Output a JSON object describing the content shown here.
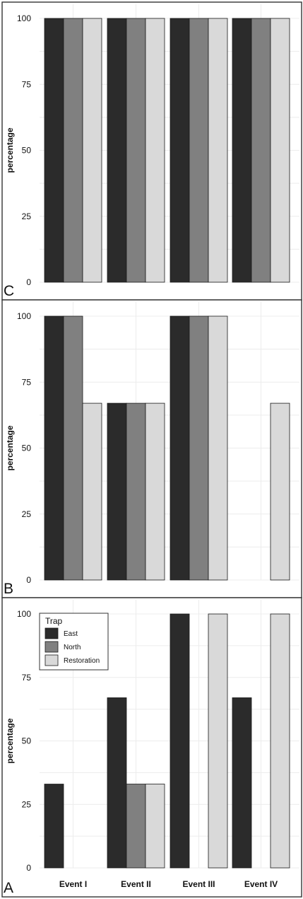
{
  "chart_data": [
    {
      "type": "bar",
      "panel": "C",
      "ylabel": "percentage",
      "ylim": [
        0,
        100
      ],
      "yticks": [
        "0",
        "25",
        "50",
        "75",
        "100"
      ],
      "categories": [
        "Event I",
        "Event II",
        "Event III",
        "Event IV"
      ],
      "show_category_labels": false,
      "series": [
        {
          "name": "East",
          "values": [
            100,
            100,
            100,
            100
          ]
        },
        {
          "name": "North",
          "values": [
            100,
            100,
            100,
            100
          ]
        },
        {
          "name": "Restoration",
          "values": [
            100,
            100,
            100,
            100
          ]
        }
      ]
    },
    {
      "type": "bar",
      "panel": "B",
      "ylabel": "percentage",
      "ylim": [
        0,
        100
      ],
      "yticks": [
        "0",
        "25",
        "50",
        "75",
        "100"
      ],
      "categories": [
        "Event I",
        "Event II",
        "Event III",
        "Event IV"
      ],
      "show_category_labels": false,
      "series": [
        {
          "name": "East",
          "values": [
            100,
            67,
            100,
            0
          ]
        },
        {
          "name": "North",
          "values": [
            100,
            67,
            100,
            0
          ]
        },
        {
          "name": "Restoration",
          "values": [
            67,
            67,
            100,
            67
          ]
        }
      ]
    },
    {
      "type": "bar",
      "panel": "A",
      "ylabel": "percentage",
      "ylim": [
        0,
        100
      ],
      "yticks": [
        "0",
        "25",
        "50",
        "75",
        "100"
      ],
      "categories": [
        "Event I",
        "Event II",
        "Event III",
        "Event IV"
      ],
      "show_category_labels": true,
      "legend": {
        "title": "Trap",
        "entries": [
          "East",
          "North",
          "Restoration"
        ],
        "position": "top-left"
      },
      "series": [
        {
          "name": "East",
          "values": [
            33,
            67,
            100,
            67
          ]
        },
        {
          "name": "North",
          "values": [
            0,
            33,
            0,
            0
          ]
        },
        {
          "name": "Restoration",
          "values": [
            0,
            33,
            100,
            100
          ]
        }
      ]
    }
  ],
  "colors": {
    "East": "#2b2b2b",
    "North": "#808080",
    "Restoration": "#d9d9d9",
    "grid": "#ececec",
    "frame": "#333333"
  }
}
